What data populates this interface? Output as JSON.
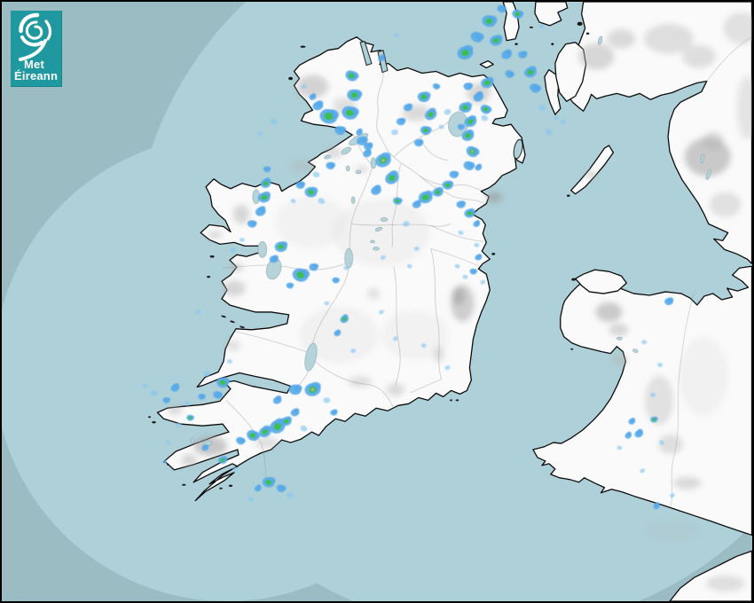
{
  "branding": {
    "logo_text_line1": "Met",
    "logo_text_line2": "Éireann",
    "logo_bg": "#1f98a0",
    "logo_icon": "cyclone-swirl-icon"
  },
  "map": {
    "description": "Rainfall radar imagery over Ireland and western Britain",
    "colors": {
      "sea_outer": "#9cbcc4",
      "sea_inner": "#aed0d8",
      "land": "#fafafa",
      "coast": "#0b0b0b",
      "county": "#9b9b9b",
      "lake": "#b7d3da",
      "terrain": "#b3b3b3",
      "logo_bg": "#1f98a0"
    },
    "radar_palette": {
      "drizzle": "#86c6f3",
      "light_rain": "#57a9e9",
      "moderate_rain": "#3cbf48",
      "heavy_core": "#c9aebc"
    },
    "radar_cells": [
      [
        396,
        84,
        7,
        3
      ],
      [
        399,
        106,
        8,
        3
      ],
      [
        394,
        126,
        9,
        3
      ],
      [
        370,
        130,
        10,
        3
      ],
      [
        358,
        118,
        6,
        2
      ],
      [
        383,
        146,
        6,
        2
      ],
      [
        342,
        96,
        3,
        1
      ],
      [
        352,
        108,
        4,
        2
      ],
      [
        408,
        158,
        6,
        2
      ],
      [
        414,
        172,
        5,
        2
      ],
      [
        372,
        186,
        5,
        2
      ],
      [
        356,
        196,
        4,
        1
      ],
      [
        308,
        136,
        4,
        1
      ],
      [
        292,
        150,
        3,
        1
      ],
      [
        299,
        206,
        6,
        3
      ],
      [
        297,
        222,
        7,
        3
      ],
      [
        293,
        238,
        6,
        2
      ],
      [
        283,
        252,
        5,
        2
      ],
      [
        300,
        190,
        4,
        2
      ],
      [
        272,
        270,
        3,
        1
      ],
      [
        262,
        282,
        3,
        1
      ],
      [
        316,
        278,
        7,
        3
      ],
      [
        308,
        292,
        5,
        2
      ],
      [
        338,
        310,
        9,
        3
      ],
      [
        353,
        301,
        5,
        2
      ],
      [
        326,
        322,
        4,
        2
      ],
      [
        222,
        352,
        3,
        1
      ],
      [
        350,
        216,
        7,
        3
      ],
      [
        338,
        208,
        5,
        2
      ],
      [
        362,
        226,
        4,
        1
      ],
      [
        330,
        226,
        3,
        1
      ],
      [
        432,
        180,
        9,
        4
      ],
      [
        442,
        200,
        8,
        3
      ],
      [
        424,
        214,
        6,
        2
      ],
      [
        448,
        226,
        5,
        3
      ],
      [
        415,
        164,
        5,
        2
      ],
      [
        405,
        148,
        4,
        2
      ],
      [
        480,
        222,
        8,
        3
      ],
      [
        494,
        216,
        6,
        3
      ],
      [
        470,
        230,
        5,
        2
      ],
      [
        505,
        208,
        6,
        3
      ],
      [
        512,
        196,
        5,
        2
      ],
      [
        520,
        230,
        5,
        2
      ],
      [
        530,
        240,
        6,
        3
      ],
      [
        538,
        252,
        4,
        2
      ],
      [
        458,
        252,
        4,
        1
      ],
      [
        470,
        280,
        3,
        1
      ],
      [
        432,
        290,
        3,
        1
      ],
      [
        390,
        302,
        3,
        1
      ],
      [
        378,
        316,
        4,
        2
      ],
      [
        368,
        342,
        3,
        1
      ],
      [
        388,
        360,
        5,
        3
      ],
      [
        380,
        376,
        4,
        2
      ],
      [
        398,
        396,
        3,
        1
      ],
      [
        430,
        352,
        3,
        1
      ],
      [
        446,
        382,
        3,
        1
      ],
      [
        462,
        300,
        3,
        1
      ],
      [
        516,
        300,
        3,
        1
      ],
      [
        525,
        312,
        3,
        1
      ],
      [
        505,
        415,
        3,
        1
      ],
      [
        478,
        390,
        3,
        1
      ],
      [
        525,
        58,
        9,
        3
      ],
      [
        538,
        40,
        7,
        2
      ],
      [
        552,
        22,
        8,
        3
      ],
      [
        560,
        44,
        7,
        3
      ],
      [
        572,
        60,
        6,
        2
      ],
      [
        584,
        14,
        6,
        3
      ],
      [
        566,
        8,
        5,
        2
      ],
      [
        599,
        80,
        7,
        3
      ],
      [
        604,
        98,
        6,
        2
      ],
      [
        590,
        60,
        5,
        2
      ],
      [
        612,
        120,
        4,
        1
      ],
      [
        620,
        148,
        4,
        1
      ],
      [
        628,
        132,
        3,
        1
      ],
      [
        575,
        82,
        5,
        2
      ],
      [
        550,
        92,
        7,
        3
      ],
      [
        540,
        108,
        6,
        2
      ],
      [
        528,
        96,
        5,
        2
      ],
      [
        548,
        122,
        6,
        3
      ],
      [
        525,
        120,
        7,
        3
      ],
      [
        531,
        136,
        7,
        3
      ],
      [
        528,
        152,
        7,
        3
      ],
      [
        533,
        170,
        7,
        4
      ],
      [
        529,
        186,
        6,
        2
      ],
      [
        540,
        188,
        4,
        2
      ],
      [
        520,
        142,
        4,
        2
      ],
      [
        547,
        132,
        4,
        1
      ],
      [
        478,
        108,
        7,
        3
      ],
      [
        486,
        128,
        7,
        3
      ],
      [
        480,
        146,
        6,
        3
      ],
      [
        472,
        160,
        5,
        2
      ],
      [
        492,
        96,
        4,
        2
      ],
      [
        498,
        142,
        3,
        1
      ],
      [
        505,
        125,
        4,
        1
      ],
      [
        460,
        120,
        5,
        2
      ],
      [
        452,
        136,
        5,
        2
      ],
      [
        445,
        148,
        4,
        1
      ],
      [
        447,
        38,
        3,
        1
      ],
      [
        430,
        64,
        4,
        2
      ],
      [
        612,
        28,
        3,
        1
      ],
      [
        636,
        136,
        3,
        1
      ],
      [
        540,
        290,
        4,
        2
      ],
      [
        534,
        306,
        4,
        2
      ],
      [
        545,
        318,
        3,
        1
      ],
      [
        538,
        276,
        3,
        1
      ],
      [
        520,
        262,
        3,
        1
      ],
      [
        352,
        440,
        9,
        4
      ],
      [
        332,
        440,
        7,
        2
      ],
      [
        312,
        452,
        5,
        2
      ],
      [
        368,
        452,
        4,
        1
      ],
      [
        376,
        466,
        4,
        2
      ],
      [
        312,
        482,
        9,
        3
      ],
      [
        298,
        488,
        7,
        3
      ],
      [
        322,
        476,
        6,
        3
      ],
      [
        284,
        492,
        7,
        3
      ],
      [
        270,
        498,
        5,
        2
      ],
      [
        332,
        466,
        5,
        2
      ],
      [
        342,
        484,
        4,
        1
      ],
      [
        302,
        545,
        7,
        3
      ],
      [
        316,
        552,
        5,
        2
      ],
      [
        290,
        552,
        4,
        2
      ],
      [
        326,
        560,
        4,
        1
      ],
      [
        282,
        564,
        3,
        1
      ],
      [
        250,
        432,
        7,
        3
      ],
      [
        244,
        446,
        5,
        2
      ],
      [
        232,
        422,
        4,
        1
      ],
      [
        258,
        408,
        3,
        1
      ],
      [
        226,
        448,
        4,
        2
      ],
      [
        210,
        456,
        3,
        1
      ],
      [
        213,
        472,
        4,
        3
      ],
      [
        200,
        480,
        3,
        1
      ],
      [
        230,
        506,
        4,
        2
      ],
      [
        250,
        520,
        5,
        3
      ],
      [
        264,
        530,
        3,
        1
      ],
      [
        188,
        500,
        3,
        1
      ],
      [
        184,
        522,
        3,
        1
      ],
      [
        196,
        438,
        5,
        2
      ],
      [
        186,
        452,
        4,
        2
      ],
      [
        172,
        444,
        4,
        1
      ],
      [
        162,
        436,
        3,
        1
      ],
      [
        756,
        340,
        5,
        2
      ],
      [
        728,
        386,
        3,
        1
      ],
      [
        746,
        412,
        3,
        1
      ],
      [
        738,
        446,
        3,
        1
      ],
      [
        714,
        476,
        4,
        2
      ],
      [
        739,
        474,
        4,
        3
      ],
      [
        722,
        490,
        5,
        2
      ],
      [
        710,
        492,
        4,
        2
      ],
      [
        700,
        506,
        3,
        1
      ],
      [
        748,
        500,
        3,
        1
      ],
      [
        726,
        532,
        3,
        1
      ],
      [
        742,
        572,
        4,
        2
      ],
      [
        760,
        560,
        3,
        1
      ]
    ]
  }
}
